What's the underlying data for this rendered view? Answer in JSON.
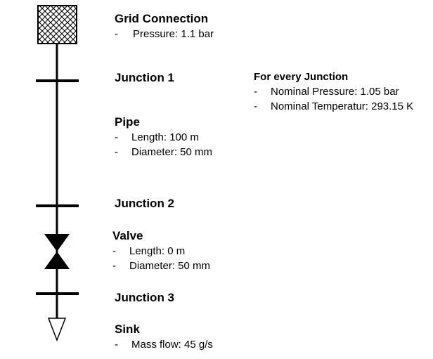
{
  "grid_connection": {
    "title": "Grid Connection",
    "items": [
      "Pressure: 1.1 bar"
    ]
  },
  "junction1": {
    "title": "Junction 1"
  },
  "junction_info": {
    "title": "For every Junction",
    "items": [
      "Nominal Pressure: 1.05 bar",
      "Nominal Temperatur: 293.15 K"
    ]
  },
  "pipe": {
    "title": "Pipe",
    "items": [
      "Length: 100 m",
      "Diameter: 50 mm"
    ]
  },
  "junction2": {
    "title": "Junction 2"
  },
  "valve": {
    "title": "Valve",
    "items": [
      "Length: 0 m",
      "Diameter: 50 mm"
    ]
  },
  "junction3": {
    "title": "Junction 3"
  },
  "sink": {
    "title": "Sink",
    "items": [
      "Mass flow: 45 g/s"
    ]
  },
  "dash_symbol": "-"
}
